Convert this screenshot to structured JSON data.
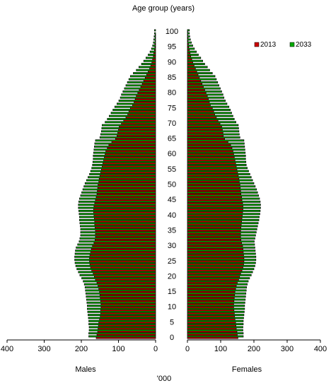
{
  "chart_data": {
    "type": "bar",
    "orientation": "horizontal-butterfly",
    "title": "Age group (years)",
    "unit_label": "'000",
    "left_axis_label": "Males",
    "right_axis_label": "Females",
    "x_range": [
      0,
      400
    ],
    "x_ticks": [
      400,
      300,
      200,
      100,
      0
    ],
    "x_ticks_right": [
      0,
      100,
      200,
      300,
      400
    ],
    "age_ticks": [
      0,
      5,
      10,
      15,
      20,
      25,
      30,
      35,
      40,
      45,
      50,
      55,
      60,
      65,
      70,
      75,
      80,
      85,
      90,
      95,
      100
    ],
    "ages": [
      0,
      1,
      2,
      3,
      4,
      5,
      6,
      7,
      8,
      9,
      10,
      11,
      12,
      13,
      14,
      15,
      16,
      17,
      18,
      19,
      20,
      21,
      22,
      23,
      24,
      25,
      26,
      27,
      28,
      29,
      30,
      31,
      32,
      33,
      34,
      35,
      36,
      37,
      38,
      39,
      40,
      41,
      42,
      43,
      44,
      45,
      46,
      47,
      48,
      49,
      50,
      51,
      52,
      53,
      54,
      55,
      56,
      57,
      58,
      59,
      60,
      61,
      62,
      63,
      64,
      65,
      66,
      67,
      68,
      69,
      70,
      71,
      72,
      73,
      74,
      75,
      76,
      77,
      78,
      79,
      80,
      81,
      82,
      83,
      84,
      85,
      86,
      87,
      88,
      89,
      90,
      91,
      92,
      93,
      94,
      95,
      96,
      97,
      98,
      99,
      100
    ],
    "legend": {
      "position": "top-right"
    },
    "series": [
      {
        "name": "2013",
        "color": "#cc0000",
        "males": [
          160,
          158,
          156,
          155,
          154,
          153,
          151,
          149,
          148,
          148,
          147,
          147,
          148,
          149,
          150,
          151,
          153,
          155,
          158,
          162,
          165,
          168,
          172,
          175,
          177,
          178,
          178,
          177,
          175,
          173,
          170,
          166,
          163,
          162,
          162,
          162,
          163,
          164,
          164,
          165,
          166,
          167,
          167,
          166,
          164,
          162,
          160,
          158,
          157,
          156,
          155,
          153,
          152,
          150,
          148,
          146,
          144,
          142,
          140,
          138,
          136,
          134,
          130,
          126,
          118,
          108,
          104,
          102,
          100,
          98,
          92,
          86,
          80,
          75,
          72,
          68,
          62,
          58,
          55,
          52,
          48,
          44,
          40,
          36,
          32,
          28,
          24,
          20,
          16,
          13,
          10,
          8,
          6,
          5,
          3,
          2,
          2,
          1,
          1,
          1,
          0
        ],
        "females": [
          152,
          150,
          149,
          147,
          146,
          145,
          143,
          142,
          141,
          140,
          139,
          139,
          140,
          141,
          142,
          143,
          145,
          147,
          150,
          154,
          157,
          160,
          164,
          167,
          169,
          170,
          170,
          169,
          168,
          167,
          166,
          163,
          161,
          160,
          160,
          160,
          161,
          162,
          163,
          164,
          165,
          166,
          167,
          167,
          166,
          164,
          163,
          161,
          160,
          159,
          158,
          156,
          155,
          153,
          151,
          149,
          147,
          145,
          143,
          141,
          139,
          137,
          134,
          130,
          122,
          112,
          108,
          107,
          105,
          103,
          98,
          92,
          87,
          82,
          79,
          75,
          69,
          66,
          63,
          60,
          56,
          52,
          48,
          44,
          40,
          36,
          32,
          28,
          24,
          20,
          16,
          13,
          10,
          8,
          6,
          4,
          3,
          2,
          2,
          1,
          1
        ]
      },
      {
        "name": "2033",
        "color": "#00aa00",
        "males": [
          180,
          180,
          179,
          179,
          180,
          180,
          181,
          182,
          183,
          184,
          184,
          185,
          186,
          187,
          188,
          189,
          190,
          192,
          195,
          199,
          204,
          208,
          212,
          215,
          217,
          218,
          218,
          217,
          216,
          214,
          210,
          206,
          204,
          202,
          202,
          202,
          203,
          204,
          205,
          205,
          206,
          207,
          208,
          208,
          207,
          205,
          202,
          199,
          196,
          193,
          190,
          186,
          182,
          178,
          175,
          172,
          170,
          169,
          168,
          168,
          167,
          166,
          165,
          164,
          162,
          150,
          148,
          146,
          145,
          144,
          136,
          130,
          125,
          120,
          115,
          110,
          104,
          99,
          95,
          92,
          88,
          84,
          80,
          76,
          72,
          68,
          60,
          52,
          45,
          38,
          32,
          26,
          20,
          15,
          11,
          8,
          6,
          5,
          4,
          3,
          3
        ],
        "females": [
          168,
          168,
          167,
          167,
          168,
          168,
          169,
          170,
          171,
          172,
          172,
          173,
          174,
          175,
          176,
          177,
          178,
          180,
          183,
          187,
          192,
          196,
          200,
          203,
          205,
          206,
          206,
          205,
          204,
          203,
          202,
          201,
          203,
          205,
          207,
          209,
          211,
          213,
          215,
          216,
          218,
          219,
          220,
          220,
          219,
          217,
          214,
          211,
          208,
          204,
          200,
          196,
          192,
          188,
          184,
          180,
          177,
          176,
          175,
          175,
          174,
          173,
          172,
          171,
          170,
          158,
          156,
          155,
          154,
          153,
          146,
          141,
          137,
          133,
          129,
          125,
          119,
          114,
          110,
          107,
          103,
          99,
          95,
          91,
          87,
          83,
          75,
          67,
          60,
          52,
          46,
          40,
          33,
          27,
          21,
          16,
          12,
          9,
          7,
          6,
          6
        ]
      }
    ]
  }
}
